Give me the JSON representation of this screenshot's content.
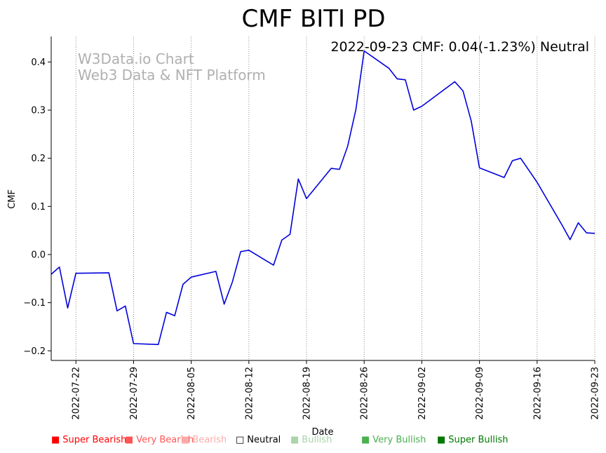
{
  "chart_data": {
    "type": "line",
    "title": "CMF BITI PD",
    "annotation": "2022-09-23 CMF: 0.04(-1.23%) Neutral",
    "watermark": [
      "W3Data.io Chart",
      "Web3 Data & NFT Platform"
    ],
    "xlabel": "Date",
    "ylabel": "CMF",
    "ylim": [
      -0.22,
      0.453
    ],
    "xlim": [
      "2022-07-19",
      "2022-09-23"
    ],
    "x_ticks": [
      "2022-07-22",
      "2022-07-29",
      "2022-08-05",
      "2022-08-12",
      "2022-08-19",
      "2022-08-26",
      "2022-09-02",
      "2022-09-09",
      "2022-09-16",
      "2022-09-23"
    ],
    "y_ticks": [
      -0.2,
      -0.1,
      0.0,
      0.1,
      0.2,
      0.3,
      0.4
    ],
    "y_tick_labels": [
      "−0.2",
      "−0.1",
      "0.0",
      "0.1",
      "0.2",
      "0.3",
      "0.4"
    ],
    "grid": "vertical dotted at x ticks",
    "series": [
      {
        "color": "#0000dd",
        "points": [
          [
            "2022-07-19",
            -0.041
          ],
          [
            "2022-07-20",
            -0.026
          ],
          [
            "2022-07-21",
            -0.111
          ],
          [
            "2022-07-22",
            -0.039
          ],
          [
            "2022-07-26",
            -0.038
          ],
          [
            "2022-07-27",
            -0.117
          ],
          [
            "2022-07-28",
            -0.107
          ],
          [
            "2022-07-29",
            -0.185
          ],
          [
            "2022-08-01",
            -0.187
          ],
          [
            "2022-08-02",
            -0.12
          ],
          [
            "2022-08-03",
            -0.127
          ],
          [
            "2022-08-04",
            -0.062
          ],
          [
            "2022-08-05",
            -0.047
          ],
          [
            "2022-08-08",
            -0.035
          ],
          [
            "2022-08-09",
            -0.103
          ],
          [
            "2022-08-10",
            -0.057
          ],
          [
            "2022-08-11",
            0.006
          ],
          [
            "2022-08-12",
            0.009
          ],
          [
            "2022-08-15",
            -0.022
          ],
          [
            "2022-08-16",
            0.03
          ],
          [
            "2022-08-17",
            0.042
          ],
          [
            "2022-08-18",
            0.157
          ],
          [
            "2022-08-19",
            0.116
          ],
          [
            "2022-08-22",
            0.179
          ],
          [
            "2022-08-23",
            0.177
          ],
          [
            "2022-08-24",
            0.225
          ],
          [
            "2022-08-25",
            0.302
          ],
          [
            "2022-08-26",
            0.423
          ],
          [
            "2022-08-29",
            0.387
          ],
          [
            "2022-08-30",
            0.365
          ],
          [
            "2022-08-31",
            0.363
          ],
          [
            "2022-09-01",
            0.3
          ],
          [
            "2022-09-02",
            0.308
          ],
          [
            "2022-09-06",
            0.359
          ],
          [
            "2022-09-07",
            0.34
          ],
          [
            "2022-09-08",
            0.277
          ],
          [
            "2022-09-09",
            0.18
          ],
          [
            "2022-09-12",
            0.16
          ],
          [
            "2022-09-13",
            0.195
          ],
          [
            "2022-09-14",
            0.2
          ],
          [
            "2022-09-16",
            0.15
          ],
          [
            "2022-09-19",
            0.062
          ],
          [
            "2022-09-20",
            0.031
          ],
          [
            "2022-09-21",
            0.066
          ],
          [
            "2022-09-22",
            0.045
          ],
          [
            "2022-09-23",
            0.044
          ]
        ]
      }
    ],
    "legend": [
      {
        "label": "Super Bearish",
        "symbol": "■",
        "color": "#ff0000"
      },
      {
        "label": "Very Bearish",
        "symbol": "■",
        "color": "#ff5555"
      },
      {
        "label": "Bearish",
        "symbol": "■",
        "color": "#ffaaaa"
      },
      {
        "label": "Neutral",
        "symbol": "□",
        "color": "#000000"
      },
      {
        "label": "Bullish",
        "symbol": "■",
        "color": "#aad4aa"
      },
      {
        "label": "Very Bullish",
        "symbol": "■",
        "color": "#4caf50"
      },
      {
        "label": "Super Bullish",
        "symbol": "■",
        "color": "#007700"
      }
    ]
  }
}
